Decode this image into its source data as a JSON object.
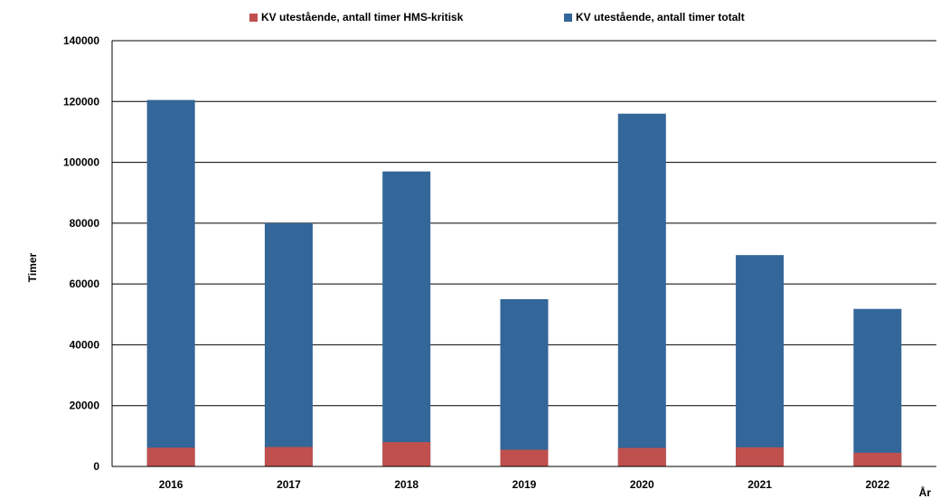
{
  "chart_data": {
    "type": "bar",
    "stacked": false,
    "overlay": true,
    "categories": [
      "2016",
      "2017",
      "2018",
      "2019",
      "2020",
      "2021",
      "2022"
    ],
    "series": [
      {
        "name": "KV utestående, antall timer totalt",
        "color": "#336699",
        "values": [
          120500,
          80000,
          97000,
          55000,
          116000,
          69500,
          51800
        ]
      },
      {
        "name": "KV utestående, antall timer HMS-kritisk",
        "color": "#c0504d",
        "values": [
          6200,
          6400,
          8000,
          5500,
          6100,
          6300,
          4500
        ]
      }
    ],
    "xlabel": "År",
    "ylabel": "Timer",
    "ylim": [
      0,
      140000
    ],
    "yticks": [
      "0",
      "20000",
      "40000",
      "60000",
      "80000",
      "100000",
      "120000",
      "140000"
    ],
    "grid": true,
    "legend_position": "top"
  },
  "legend": [
    {
      "label": "KV utestående, antall timer HMS-kritisk",
      "color": "#c0504d"
    },
    {
      "label": "KV utestående, antall timer totalt",
      "color": "#336699"
    }
  ]
}
